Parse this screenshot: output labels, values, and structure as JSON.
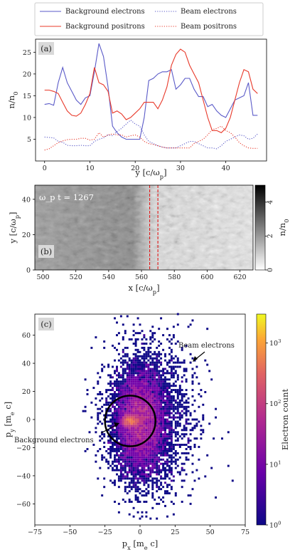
{
  "chart_data": [
    {
      "type": "line",
      "panel_label": "(a)",
      "xlabel": "y [c/ω_p]",
      "ylabel": "n/n_0",
      "xlim": [
        -2,
        49
      ],
      "ylim": [
        0,
        28
      ],
      "xticks": [
        "0",
        "10",
        "20",
        "30",
        "40"
      ],
      "yticks": [
        "5",
        "10",
        "15",
        "20",
        "25"
      ],
      "x": [
        0,
        1,
        2,
        3,
        4,
        5,
        6,
        7,
        8,
        9,
        10,
        11,
        12,
        13,
        14,
        15,
        16,
        17,
        18,
        19,
        20,
        21,
        22,
        23,
        24,
        25,
        26,
        27,
        28,
        29,
        30,
        31,
        32,
        33,
        34,
        35,
        36,
        37,
        38,
        39,
        40,
        41,
        42,
        43,
        44,
        45,
        46,
        47
      ],
      "series": [
        {
          "name": "Background electrons",
          "color": "#5a5ac8",
          "style": "solid",
          "values": [
            13,
            13.2,
            12.8,
            18,
            21.5,
            18,
            16,
            14,
            13,
            14.5,
            15,
            20.5,
            27,
            24,
            17,
            8,
            6.5,
            5.5,
            5,
            5,
            5,
            5,
            10,
            18.5,
            19,
            20,
            20.5,
            20.5,
            21,
            16.5,
            17.5,
            19,
            19,
            16.5,
            14.8,
            14.8,
            12.5,
            13,
            11.5,
            10.5,
            10,
            12,
            14,
            14.5,
            15,
            18,
            10.5,
            10.5
          ]
        },
        {
          "name": "Background positrons",
          "color": "#e8392a",
          "style": "solid",
          "values": [
            16.3,
            16.3,
            16,
            15.5,
            13.5,
            11.5,
            10.5,
            10.3,
            11,
            13,
            15.5,
            21.5,
            18,
            17.5,
            16,
            11,
            11.5,
            10.8,
            9.5,
            10,
            11,
            12,
            13.5,
            13.5,
            13.5,
            12,
            14,
            17,
            22,
            24.5,
            25.7,
            25,
            22,
            20,
            18,
            14,
            10,
            7,
            7,
            6.5,
            7.5,
            10,
            14,
            18,
            21,
            20.5,
            16.5,
            15.5
          ]
        },
        {
          "name": "Beam electrons",
          "color": "#5a5ac8",
          "style": "dotted",
          "values": [
            5.5,
            5.4,
            5.3,
            4.5,
            4.3,
            3.6,
            3.5,
            3.5,
            3.6,
            3.5,
            3.5,
            4.5,
            5,
            5.3,
            6,
            5.8,
            6.8,
            7.5,
            8.5,
            9.4,
            8.5,
            8,
            6,
            4.5,
            4,
            3.5,
            3.2,
            3,
            3,
            3,
            3.5,
            4,
            4.5,
            4.5,
            4,
            3.5,
            3,
            3,
            2.8,
            3.5,
            4.5,
            5,
            5.5,
            6,
            5.8,
            5,
            5.2,
            6.2
          ]
        },
        {
          "name": "Beam positrons",
          "color": "#e8392a",
          "style": "dotted",
          "values": [
            2.5,
            2.8,
            3.5,
            4.2,
            4.6,
            4.9,
            5,
            5,
            5.2,
            5.2,
            4.8,
            5,
            6.5,
            5.5,
            6,
            6.2,
            6,
            6,
            5.5,
            5.8,
            6,
            5.5,
            4.5,
            4,
            3.8,
            3.5,
            3.2,
            3,
            3,
            3,
            3,
            3,
            3,
            4,
            4.5,
            5,
            6,
            7.2,
            7.5,
            8,
            7,
            6.5,
            5.5,
            4.2,
            3.5,
            3,
            2.9,
            2.9
          ]
        }
      ]
    },
    {
      "type": "heatmap",
      "panel_label": "(b)",
      "annotation": "ω_p t = 1267",
      "xlabel": "x [c/ω_p]",
      "ylabel": "y [c/ω_p]",
      "xlim": [
        495,
        628
      ],
      "ylim": [
        0,
        48
      ],
      "xticks": [
        "500",
        "520",
        "540",
        "560",
        "580",
        "600",
        "620"
      ],
      "yticks": [
        "0",
        "20",
        "40"
      ],
      "colorbar_label": "n/n_0",
      "colorbar_ticks": [
        "0",
        "2",
        "4"
      ],
      "colorbar_range": [
        0,
        5
      ],
      "colormap": "gray_r",
      "marker_lines_x": [
        565,
        570
      ],
      "marker_line_color": "#e01818"
    },
    {
      "type": "heatmap",
      "panel_label": "(c)",
      "xlabel": "p_x [m_e c]",
      "ylabel": "p_y [m_e c]",
      "xlim": [
        -75,
        75
      ],
      "ylim": [
        -75,
        75
      ],
      "xticks": [
        "−75",
        "−50",
        "−25",
        "0",
        "25",
        "50",
        "75"
      ],
      "yticks": [
        "−60",
        "−40",
        "−20",
        "0",
        "20",
        "40",
        "60"
      ],
      "colorbar_label": "Electron count",
      "colorbar_ticks": [
        "10^0",
        "10^1",
        "10^2",
        "10^3"
      ],
      "colorbar_scale": "log",
      "colorbar_range": [
        1,
        3000
      ],
      "colormap": "plasma",
      "annotations": [
        {
          "text": "Beam electrons",
          "points_to": [
            30,
            22
          ]
        },
        {
          "text": "Background electrons",
          "points_to": [
            -15,
            -2
          ]
        }
      ],
      "circle_center": [
        -7,
        -1
      ],
      "circle_radius": 9
    }
  ]
}
